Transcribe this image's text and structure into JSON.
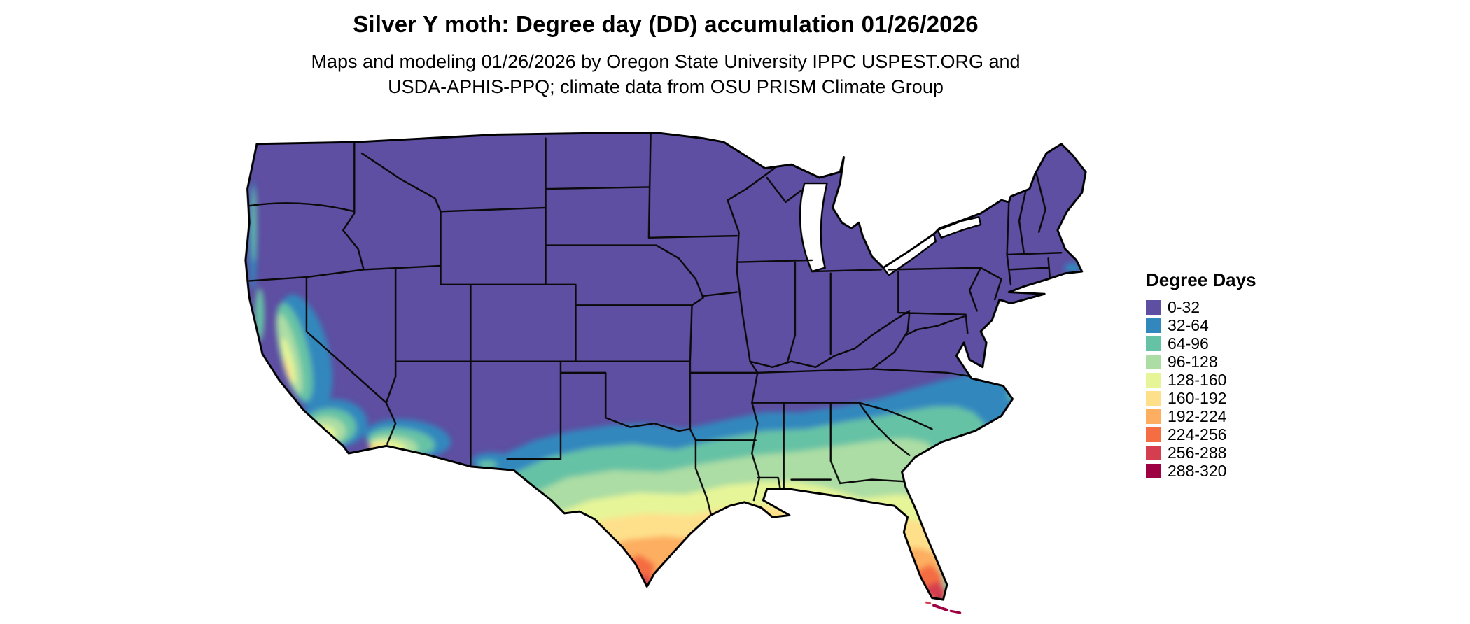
{
  "header": {
    "title": "Silver Y moth: Degree day (DD) accumulation 01/26/2026",
    "subtitle_line1": "Maps and modeling 01/26/2026 by Oregon State University IPPC USPEST.ORG and",
    "subtitle_line2": "USDA-APHIS-PPQ; climate data from OSU PRISM Climate Group"
  },
  "legend": {
    "title": "Degree Days",
    "items": [
      {
        "label": "0-32",
        "color": "#5e4fa2"
      },
      {
        "label": "32-64",
        "color": "#3288bd"
      },
      {
        "label": "64-96",
        "color": "#66c2a5"
      },
      {
        "label": "96-128",
        "color": "#abdda4"
      },
      {
        "label": "128-160",
        "color": "#e6f598"
      },
      {
        "label": "160-192",
        "color": "#fee08b"
      },
      {
        "label": "192-224",
        "color": "#fdae61"
      },
      {
        "label": "224-256",
        "color": "#f46d43"
      },
      {
        "label": "256-288",
        "color": "#d53e4f"
      },
      {
        "label": "288-320",
        "color": "#9e0142"
      }
    ]
  },
  "map": {
    "base_color": "#5e4fa2",
    "border_color": "#000000",
    "background_color": "#ffffff"
  }
}
